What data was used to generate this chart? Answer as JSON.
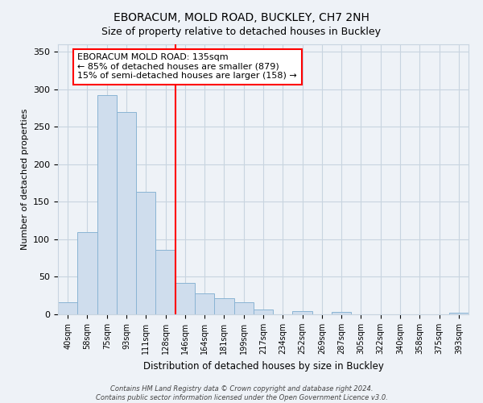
{
  "title": "EBORACUM, MOLD ROAD, BUCKLEY, CH7 2NH",
  "subtitle": "Size of property relative to detached houses in Buckley",
  "xlabel": "Distribution of detached houses by size in Buckley",
  "ylabel": "Number of detached properties",
  "bar_color": "#cfdded",
  "bar_edge_color": "#8ab4d4",
  "categories": [
    "40sqm",
    "58sqm",
    "75sqm",
    "93sqm",
    "111sqm",
    "128sqm",
    "146sqm",
    "164sqm",
    "181sqm",
    "199sqm",
    "217sqm",
    "234sqm",
    "252sqm",
    "269sqm",
    "287sqm",
    "305sqm",
    "322sqm",
    "340sqm",
    "358sqm",
    "375sqm",
    "393sqm"
  ],
  "values": [
    16,
    110,
    292,
    270,
    163,
    86,
    42,
    28,
    21,
    16,
    6,
    0,
    4,
    0,
    3,
    0,
    0,
    0,
    0,
    0,
    2
  ],
  "ylim": [
    0,
    360
  ],
  "yticks": [
    0,
    50,
    100,
    150,
    200,
    250,
    300,
    350
  ],
  "red_line_x": 5.5,
  "marker_label": "EBORACUM MOLD ROAD: 135sqm",
  "annotation_line1": "← 85% of detached houses are smaller (879)",
  "annotation_line2": "15% of semi-detached houses are larger (158) →",
  "footnote1": "Contains HM Land Registry data © Crown copyright and database right 2024.",
  "footnote2": "Contains public sector information licensed under the Open Government Licence v3.0.",
  "background_color": "#eef2f7",
  "plot_bg_color": "#eef2f7",
  "grid_color": "#c8d4e0"
}
